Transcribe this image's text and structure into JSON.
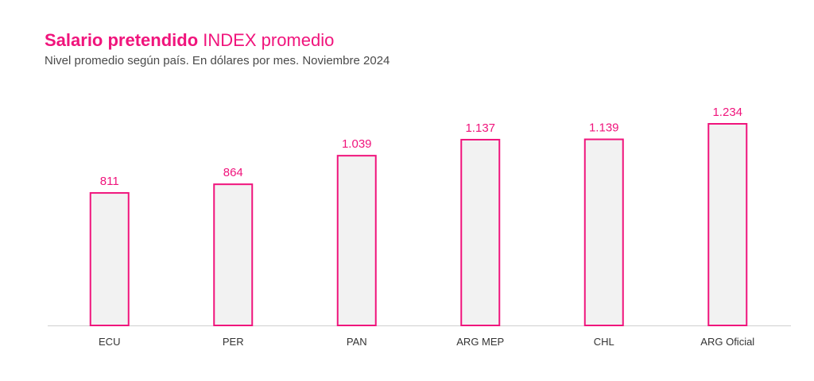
{
  "header": {
    "title_bold": "Salario pretendido",
    "title_rest": "INDEX promedio",
    "subtitle": "Nivel promedio según país. En dólares por mes. Noviembre 2024"
  },
  "chart_data": {
    "type": "bar",
    "title": "Salario pretendido INDEX promedio",
    "subtitle": "Nivel promedio según país. En dólares por mes. Noviembre 2024",
    "categories": [
      "ECU",
      "PER",
      "PAN",
      "ARG MEP",
      "CHL",
      "ARG Oficial"
    ],
    "values": [
      811,
      864,
      1039,
      1137,
      1139,
      1234
    ],
    "data_labels": [
      "811",
      "864",
      "1.039",
      "1.137",
      "1.139",
      "1.234"
    ],
    "xlabel": "",
    "ylabel": "",
    "ylim": [
      0,
      1234
    ],
    "grid": false,
    "legend": "none",
    "colors": {
      "bar_fill": "#f2f2f2",
      "bar_stroke": "#f0147c",
      "label": "#f0147c",
      "axis": "#d0d0d0",
      "tick_text": "#333333"
    }
  }
}
